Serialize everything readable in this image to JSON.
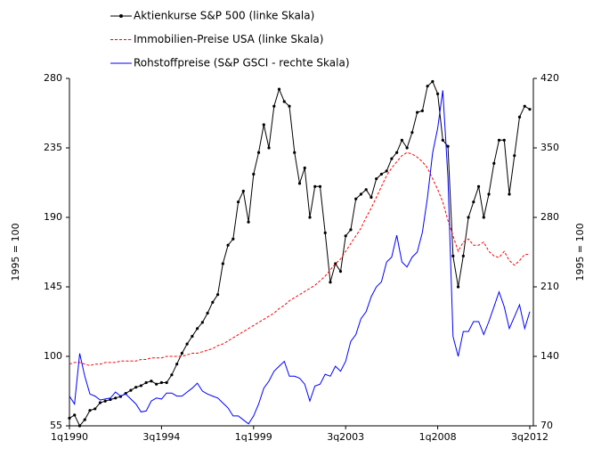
{
  "chart_data": {
    "type": "line",
    "categories": [
      "1q1990",
      null,
      null,
      null,
      null,
      null,
      null,
      null,
      null,
      null,
      null,
      null,
      null,
      null,
      null,
      null,
      null,
      null,
      "3q1994",
      null,
      null,
      null,
      null,
      null,
      null,
      null,
      null,
      null,
      null,
      null,
      null,
      null,
      null,
      null,
      null,
      null,
      "1q1999",
      null,
      null,
      null,
      null,
      null,
      null,
      null,
      null,
      null,
      null,
      null,
      null,
      null,
      null,
      null,
      null,
      null,
      "3q2003",
      null,
      null,
      null,
      null,
      null,
      null,
      null,
      null,
      null,
      null,
      null,
      null,
      null,
      null,
      null,
      null,
      null,
      "1q2008",
      null,
      null,
      null,
      null,
      null,
      null,
      null,
      null,
      null,
      null,
      null,
      null,
      null,
      null,
      null,
      null,
      null,
      "3q2012"
    ],
    "series": [
      {
        "name": "Aktienkurse S&P 500 (linke Skala)",
        "color": "#000000",
        "dash": false,
        "markers": true,
        "values": [
          60,
          62,
          55,
          59,
          65,
          66,
          70,
          71,
          72,
          73,
          74,
          76,
          78,
          80,
          81,
          83,
          84,
          82,
          83,
          83,
          88,
          95,
          102,
          108,
          113,
          118,
          122,
          128,
          135,
          140,
          160,
          172,
          176,
          200,
          207,
          187,
          218,
          232,
          250,
          235,
          262,
          273,
          265,
          262,
          232,
          212,
          222,
          190,
          210,
          210,
          180,
          148,
          160,
          155,
          178,
          182,
          202,
          205,
          208,
          203,
          215,
          218,
          220,
          228,
          232,
          240,
          235,
          245,
          258,
          259,
          275,
          278,
          270,
          240,
          236,
          165,
          145,
          165,
          190,
          200,
          210,
          190,
          205,
          225,
          240,
          240,
          205,
          230,
          255,
          262,
          260
        ]
      },
      {
        "name": "Immobilien-Preise USA (linke Skala)",
        "color": "#ff0000",
        "dash": true,
        "markers": false,
        "values": [
          95,
          96,
          96,
          95,
          94,
          95,
          95,
          96,
          96,
          96,
          97,
          97,
          97,
          97,
          98,
          98,
          99,
          99,
          99,
          100,
          100,
          100,
          100,
          101,
          102,
          102,
          103,
          104,
          105,
          107,
          108,
          110,
          112,
          114,
          116,
          118,
          120,
          122,
          124,
          126,
          128,
          131,
          133,
          136,
          138,
          140,
          142,
          144,
          146,
          149,
          152,
          156,
          160,
          163,
          168,
          173,
          178,
          183,
          190,
          196,
          203,
          210,
          217,
          222,
          226,
          230,
          232,
          231,
          229,
          226,
          222,
          215,
          208,
          200,
          188,
          178,
          168,
          174,
          176,
          172,
          172,
          174,
          168,
          165,
          164,
          168,
          162,
          159,
          162,
          166,
          166
        ]
      },
      {
        "name": "Rohstoffpreise (S&P GSCI - rechte Skala)",
        "color": "#0000ff",
        "dash": false,
        "markers": false,
        "axis": "y2",
        "values": [
          100,
          92,
          143,
          120,
          102,
          100,
          96,
          97,
          98,
          104,
          100,
          102,
          97,
          92,
          84,
          85,
          95,
          98,
          97,
          103,
          103,
          100,
          100,
          104,
          108,
          113,
          105,
          102,
          100,
          98,
          93,
          88,
          80,
          80,
          76,
          72,
          80,
          92,
          108,
          115,
          125,
          130,
          135,
          120,
          120,
          118,
          112,
          95,
          110,
          112,
          122,
          120,
          130,
          125,
          135,
          155,
          162,
          178,
          185,
          200,
          210,
          215,
          235,
          240,
          262,
          235,
          230,
          240,
          245,
          265,
          300,
          345,
          370,
          408,
          320,
          160,
          140,
          165,
          165,
          175,
          175,
          162,
          175,
          190,
          205,
          190,
          168,
          180,
          192,
          168,
          185
        ]
      }
    ],
    "ylim": [
      55,
      280
    ],
    "yticks": [
      55,
      100,
      145,
      190,
      235,
      280
    ],
    "y2lim": [
      70,
      420
    ],
    "y2ticks": [
      70,
      140,
      210,
      280,
      350,
      420
    ],
    "y_label": "1995 = 100",
    "y2_label": "1995 = 100",
    "legend": "top",
    "grid": false
  }
}
